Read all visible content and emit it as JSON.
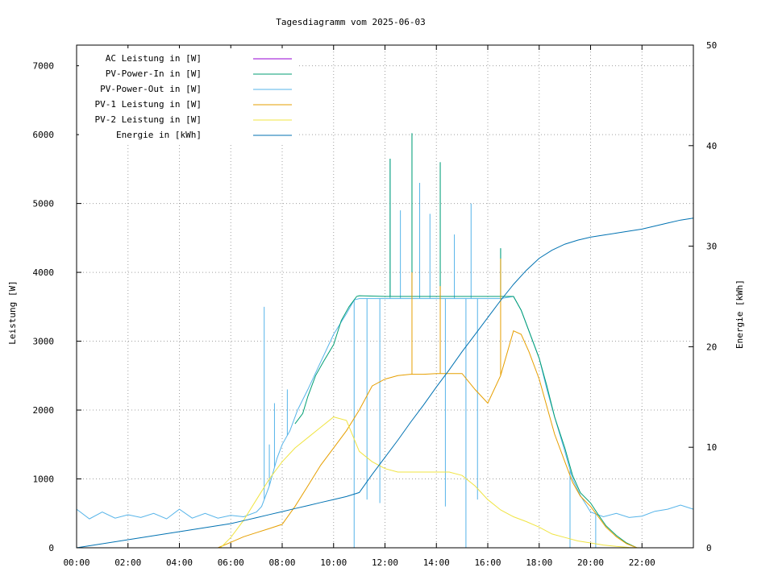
{
  "chart_data": {
    "type": "line",
    "title": "Tagesdiagramm vom 2025-06-03",
    "ylabel": "Leistung [W]",
    "y2label": "Energie [kWh]",
    "xlim": [
      0,
      24
    ],
    "ylim": [
      0,
      7300
    ],
    "y2lim": [
      0,
      50
    ],
    "xticks": [
      0,
      2,
      4,
      6,
      8,
      10,
      12,
      14,
      16,
      18,
      20,
      22
    ],
    "xtick_labels": [
      "00:00",
      "02:00",
      "04:00",
      "06:00",
      "08:00",
      "10:00",
      "12:00",
      "14:00",
      "16:00",
      "18:00",
      "20:00",
      "22:00"
    ],
    "yticks": [
      0,
      1000,
      2000,
      3000,
      4000,
      5000,
      6000,
      7000
    ],
    "y2ticks": [
      0,
      10,
      20,
      30,
      40,
      50
    ],
    "legend": [
      {
        "label": "AC Leistung in [W]",
        "color": "#9400d3"
      },
      {
        "label": "PV-Power-In in [W]",
        "color": "#009e73"
      },
      {
        "label": "PV-Power-Out in [W]",
        "color": "#56b4e9"
      },
      {
        "label": "PV-1 Leistung in [W]",
        "color": "#e69f00"
      },
      {
        "label": "PV-2 Leistung in [W]",
        "color": "#f0e442"
      },
      {
        "label": "Energie in [kWh]",
        "color": "#0072b2"
      }
    ],
    "series": [
      {
        "name": "PV-Power-Out in [W]",
        "color": "#56b4e9",
        "axis": "y",
        "x": [
          0,
          0.5,
          1,
          1.5,
          2,
          2.5,
          3,
          3.5,
          4,
          4.5,
          5,
          5.5,
          6,
          6.5,
          7,
          7.2,
          7.5,
          7.8,
          8,
          8.3,
          8.6,
          9,
          9.5,
          10,
          10.5,
          10.8,
          11,
          11.5,
          12,
          12.5,
          13,
          13.5,
          14,
          14.5,
          15,
          15.5,
          16,
          16.5,
          17,
          17.3,
          17.6,
          18,
          18.3,
          18.6,
          19,
          19.3,
          19.6,
          20,
          20.5,
          21,
          21.5,
          22,
          22.5,
          23,
          23.5,
          24
        ],
        "y": [
          560,
          420,
          520,
          430,
          480,
          440,
          500,
          420,
          560,
          430,
          500,
          430,
          470,
          450,
          520,
          600,
          900,
          1300,
          1500,
          1700,
          2000,
          2300,
          2700,
          3100,
          3400,
          3600,
          3620,
          3620,
          3620,
          3620,
          3620,
          3620,
          3620,
          3620,
          3620,
          3620,
          3620,
          3620,
          3650,
          3450,
          3150,
          2750,
          2300,
          1900,
          1400,
          1000,
          760,
          520,
          450,
          500,
          440,
          460,
          530,
          560,
          620,
          560
        ],
        "spikes": [
          {
            "x": 7.3,
            "y": 3500
          },
          {
            "x": 7.5,
            "y": 1500
          },
          {
            "x": 7.7,
            "y": 2100
          },
          {
            "x": 8.2,
            "y": 2300
          },
          {
            "x": 10.8,
            "y": 0
          },
          {
            "x": 11.3,
            "y": 700
          },
          {
            "x": 11.8,
            "y": 650
          },
          {
            "x": 12.2,
            "y": 5650
          },
          {
            "x": 12.6,
            "y": 4900
          },
          {
            "x": 13.05,
            "y": 6020
          },
          {
            "x": 13.35,
            "y": 5300
          },
          {
            "x": 13.75,
            "y": 4850
          },
          {
            "x": 14.15,
            "y": 5600
          },
          {
            "x": 14.35,
            "y": 600
          },
          {
            "x": 14.7,
            "y": 4550
          },
          {
            "x": 15.15,
            "y": 0
          },
          {
            "x": 15.35,
            "y": 5000
          },
          {
            "x": 15.6,
            "y": 700
          },
          {
            "x": 16.5,
            "y": 4350
          },
          {
            "x": 19.2,
            "y": 0
          },
          {
            "x": 20.2,
            "y": 0
          }
        ]
      },
      {
        "name": "PV-Power-In in [W]",
        "color": "#009e73",
        "axis": "y",
        "x": [
          8.5,
          8.8,
          9,
          9.3,
          9.6,
          10,
          10.3,
          10.6,
          10.9,
          11,
          12,
          13,
          14,
          15,
          16,
          17,
          17.3,
          17.6,
          18,
          18.3,
          18.6,
          19,
          19.3,
          19.6,
          20,
          20.3,
          20.6,
          21,
          21.4,
          21.8
        ],
        "y": [
          1800,
          1950,
          2200,
          2500,
          2700,
          2950,
          3300,
          3500,
          3650,
          3660,
          3650,
          3650,
          3650,
          3650,
          3650,
          3650,
          3450,
          3150,
          2750,
          2350,
          1900,
          1450,
          1050,
          800,
          650,
          480,
          320,
          180,
          70,
          0
        ],
        "spikes": [
          {
            "x": 12.2,
            "y": 5650
          },
          {
            "x": 13.05,
            "y": 6020
          },
          {
            "x": 14.15,
            "y": 5600
          },
          {
            "x": 16.5,
            "y": 4350
          }
        ]
      },
      {
        "name": "PV-1 Leistung in [W]",
        "color": "#e69f00",
        "axis": "y",
        "x": [
          5.5,
          6,
          6.5,
          7,
          7.5,
          8,
          8.5,
          9,
          9.5,
          10,
          10.5,
          11,
          11.5,
          12,
          12.5,
          13,
          13.5,
          14,
          14.5,
          15,
          15.5,
          16,
          16.5,
          17,
          17.3,
          17.6,
          18,
          18.3,
          18.6,
          19,
          19.3,
          19.6,
          20,
          20.3,
          20.6,
          21,
          21.4,
          21.8
        ],
        "y": [
          0,
          80,
          160,
          220,
          280,
          340,
          600,
          900,
          1200,
          1450,
          1700,
          2000,
          2350,
          2450,
          2500,
          2520,
          2520,
          2530,
          2530,
          2530,
          2300,
          2100,
          2500,
          3150,
          3100,
          2850,
          2450,
          2050,
          1650,
          1250,
          950,
          750,
          600,
          450,
          300,
          160,
          60,
          0
        ],
        "spikes": [
          {
            "x": 13.05,
            "y": 4000
          },
          {
            "x": 14.15,
            "y": 3800
          },
          {
            "x": 16.5,
            "y": 4200
          }
        ]
      },
      {
        "name": "PV-2 Leistung in [W]",
        "color": "#f0e442",
        "axis": "y",
        "x": [
          5.6,
          6,
          6.5,
          7,
          7.5,
          8,
          8.5,
          9,
          9.5,
          10,
          10.5,
          11,
          11.5,
          12,
          12.5,
          13,
          13.5,
          14,
          14.5,
          15,
          15.5,
          16,
          16.5,
          17,
          17.5,
          18,
          18.5,
          19,
          19.5,
          20,
          20.5,
          21,
          21.5,
          22
        ],
        "y": [
          0,
          150,
          400,
          700,
          1000,
          1250,
          1450,
          1600,
          1750,
          1900,
          1850,
          1400,
          1250,
          1150,
          1100,
          1100,
          1100,
          1100,
          1100,
          1050,
          900,
          700,
          550,
          450,
          380,
          300,
          200,
          150,
          100,
          70,
          40,
          20,
          5,
          0
        ]
      },
      {
        "name": "Energie in [kWh]",
        "color": "#0072b2",
        "axis": "y2",
        "x": [
          0,
          1,
          2,
          3,
          4,
          5,
          5.5,
          6,
          6.5,
          7,
          7.5,
          8,
          8.5,
          9,
          9.5,
          10,
          10.5,
          11,
          11.5,
          12,
          12.5,
          13,
          13.5,
          14,
          14.5,
          15,
          15.5,
          16,
          16.5,
          17,
          17.5,
          18,
          18.5,
          19,
          19.5,
          20,
          20.5,
          21,
          21.5,
          22,
          22.5,
          23,
          23.5,
          24
        ],
        "y": [
          0,
          0.4,
          0.8,
          1.2,
          1.6,
          2.0,
          2.2,
          2.4,
          2.7,
          3.0,
          3.3,
          3.6,
          3.9,
          4.2,
          4.5,
          4.8,
          5.1,
          5.5,
          7.3,
          9.0,
          10.7,
          12.5,
          14.2,
          16.0,
          17.7,
          19.5,
          21.2,
          22.9,
          24.6,
          26.2,
          27.6,
          28.8,
          29.6,
          30.2,
          30.6,
          30.9,
          31.1,
          31.3,
          31.5,
          31.7,
          32.0,
          32.3,
          32.6,
          32.8
        ]
      }
    ]
  }
}
